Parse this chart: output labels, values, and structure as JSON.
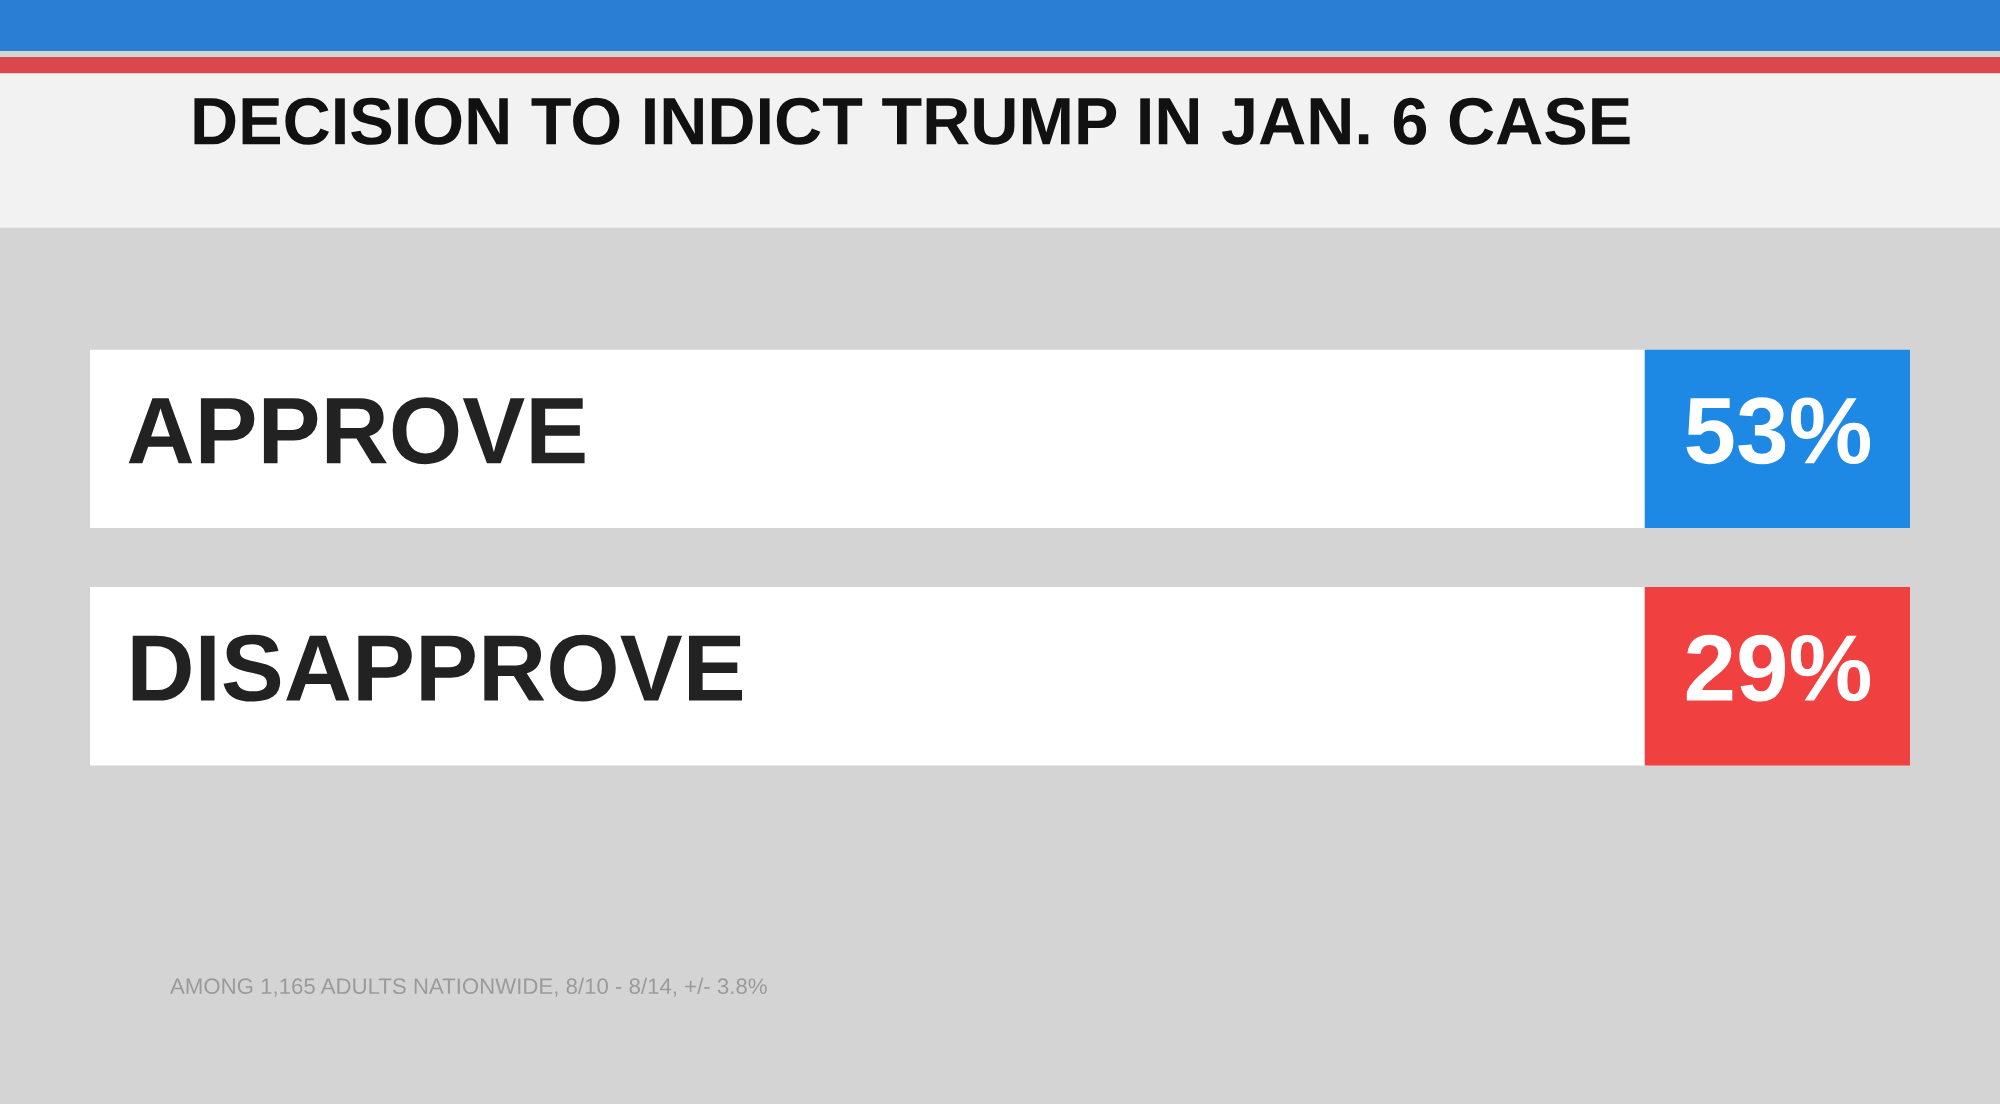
{
  "chart_data": {
    "type": "other",
    "title": "DECISION TO INDICT TRUMP IN JAN. 6 CASE",
    "categories": [
      "APPROVE",
      "DISAPPROVE"
    ],
    "values": [
      53,
      29
    ],
    "value_labels": [
      "53%",
      "29%"
    ],
    "colors": [
      "#1e88e5",
      "#f04040"
    ],
    "annotations": [
      "AMONG 1,165 ADULTS NATIONWIDE, 8/10 - 8/14, +/- 3.8%"
    ]
  }
}
